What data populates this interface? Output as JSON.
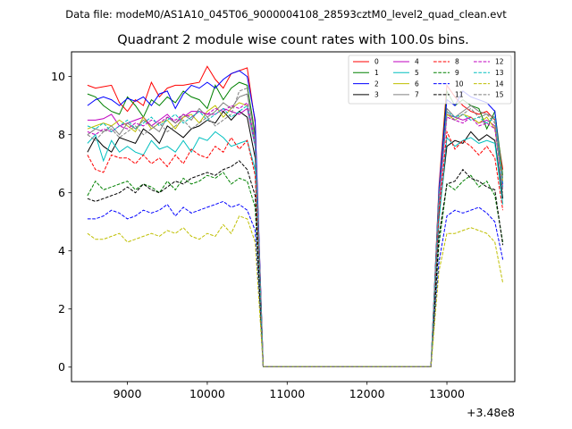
{
  "suptitle": "Data file: modeM0/AS1A10_045T06_9000004108_28593cztM0_level2_quad_clean.evt",
  "chart_data": {
    "type": "line",
    "title": "Quadrant 2 module wise count rates with 100.0s bins.",
    "xlabel": "",
    "ylabel": "",
    "x_offset_label": "+3.48e8",
    "x_offset": 348000000,
    "xlim": [
      8300,
      13850
    ],
    "ylim": [
      -0.5,
      10.85
    ],
    "x_ticks": [
      9000,
      10000,
      11000,
      12000,
      13000
    ],
    "x_tick_labels": [
      "9000",
      "10000",
      "11000",
      "12000",
      "13000"
    ],
    "y_ticks": [
      0,
      2,
      4,
      6,
      8,
      10
    ],
    "y_tick_labels": [
      "0",
      "2",
      "4",
      "6",
      "8",
      "10"
    ],
    "grid": false,
    "legend_position": "top-right",
    "x": [
      8500,
      8600,
      8700,
      8800,
      8900,
      9000,
      9100,
      9200,
      9300,
      9400,
      9500,
      9600,
      9700,
      9800,
      9900,
      10000,
      10100,
      10200,
      10300,
      10400,
      10500,
      10600,
      10700,
      10800,
      10900,
      11000,
      11100,
      11200,
      11300,
      11400,
      11500,
      11600,
      11700,
      11800,
      11900,
      12000,
      12100,
      12200,
      12300,
      12400,
      12500,
      12600,
      12700,
      12800,
      12900,
      13000,
      13100,
      13200,
      13300,
      13400,
      13500,
      13600,
      13700
    ],
    "series": [
      {
        "name": "0",
        "color": "#ff0000",
        "dash": "solid",
        "values": [
          9.7,
          9.6,
          9.65,
          9.7,
          9.1,
          8.8,
          9.2,
          9.0,
          9.8,
          9.3,
          9.6,
          9.7,
          9.7,
          9.75,
          9.8,
          10.35,
          9.9,
          9.6,
          10.1,
          10.2,
          10.3,
          8.4,
          0.02,
          0.02,
          0.02,
          0.02,
          0.02,
          0.02,
          0.02,
          0.02,
          0.02,
          0.02,
          0.02,
          0.02,
          0.02,
          0.02,
          0.02,
          0.02,
          0.02,
          0.02,
          0.02,
          0.02,
          0.02,
          0.02,
          6.2,
          9.7,
          9.3,
          9.0,
          8.8,
          8.7,
          8.8,
          8.5,
          6.8
        ]
      },
      {
        "name": "1",
        "color": "#008000",
        "dash": "solid",
        "values": [
          9.4,
          9.3,
          9.0,
          8.8,
          8.7,
          9.3,
          9.0,
          8.6,
          9.2,
          9.0,
          9.3,
          9.1,
          9.5,
          9.3,
          9.2,
          8.9,
          9.7,
          9.2,
          9.6,
          9.8,
          9.7,
          8.0,
          0.02,
          0.02,
          0.02,
          0.02,
          0.02,
          0.02,
          0.02,
          0.02,
          0.02,
          0.02,
          0.02,
          0.02,
          0.02,
          0.02,
          0.02,
          0.02,
          0.02,
          0.02,
          0.02,
          0.02,
          0.02,
          0.02,
          6.0,
          9.5,
          9.0,
          9.2,
          9.0,
          8.9,
          8.2,
          8.8,
          6.6
        ]
      },
      {
        "name": "2",
        "color": "#0000ff",
        "dash": "solid",
        "values": [
          9.0,
          9.2,
          9.3,
          9.2,
          9.0,
          9.25,
          9.15,
          9.3,
          9.0,
          9.4,
          9.5,
          8.9,
          9.4,
          9.7,
          9.6,
          9.8,
          9.6,
          9.9,
          10.1,
          10.2,
          10.0,
          8.5,
          0.02,
          0.02,
          0.02,
          0.02,
          0.02,
          0.02,
          0.02,
          0.02,
          0.02,
          0.02,
          0.02,
          0.02,
          0.02,
          0.02,
          0.02,
          0.02,
          0.02,
          0.02,
          0.02,
          0.02,
          0.02,
          0.02,
          6.1,
          9.2,
          9.0,
          9.5,
          9.3,
          9.2,
          9.1,
          8.8,
          6.3
        ]
      },
      {
        "name": "3",
        "color": "#000000",
        "dash": "solid",
        "values": [
          7.4,
          7.9,
          7.6,
          7.4,
          7.9,
          7.8,
          7.7,
          8.2,
          8.0,
          7.7,
          8.3,
          8.1,
          7.9,
          8.2,
          8.3,
          8.5,
          8.4,
          8.8,
          8.5,
          8.8,
          8.6,
          7.2,
          0.02,
          0.02,
          0.02,
          0.02,
          0.02,
          0.02,
          0.02,
          0.02,
          0.02,
          0.02,
          0.02,
          0.02,
          0.02,
          0.02,
          0.02,
          0.02,
          0.02,
          0.02,
          0.02,
          0.02,
          0.02,
          0.02,
          5.2,
          7.6,
          7.8,
          7.7,
          8.1,
          7.8,
          8.0,
          7.8,
          5.8
        ]
      },
      {
        "name": "4",
        "color": "#bf00bf",
        "dash": "solid",
        "values": [
          8.5,
          8.5,
          8.55,
          8.7,
          8.3,
          8.4,
          8.5,
          8.6,
          8.3,
          8.5,
          8.7,
          8.4,
          8.6,
          8.8,
          8.8,
          8.7,
          8.7,
          8.9,
          8.8,
          8.7,
          8.9,
          7.6,
          0.02,
          0.02,
          0.02,
          0.02,
          0.02,
          0.02,
          0.02,
          0.02,
          0.02,
          0.02,
          0.02,
          0.02,
          0.02,
          0.02,
          0.02,
          0.02,
          0.02,
          0.02,
          0.02,
          0.02,
          0.02,
          0.02,
          5.6,
          8.7,
          8.6,
          8.5,
          8.6,
          8.4,
          8.5,
          8.3,
          6.2
        ]
      },
      {
        "name": "5",
        "color": "#00bfbf",
        "dash": "solid",
        "values": [
          7.7,
          8.0,
          7.1,
          7.8,
          7.4,
          7.6,
          7.4,
          7.3,
          7.8,
          7.5,
          7.6,
          7.4,
          7.8,
          7.4,
          7.9,
          7.8,
          8.1,
          7.9,
          7.6,
          7.7,
          7.8,
          6.8,
          0.02,
          0.02,
          0.02,
          0.02,
          0.02,
          0.02,
          0.02,
          0.02,
          0.02,
          0.02,
          0.02,
          0.02,
          0.02,
          0.02,
          0.02,
          0.02,
          0.02,
          0.02,
          0.02,
          0.02,
          0.02,
          0.02,
          5.0,
          7.9,
          7.6,
          7.8,
          7.9,
          7.7,
          7.8,
          7.7,
          5.6
        ]
      },
      {
        "name": "6",
        "color": "#bfbf00",
        "dash": "solid",
        "values": [
          8.2,
          8.3,
          8.4,
          8.3,
          8.5,
          8.3,
          8.1,
          8.6,
          8.2,
          8.4,
          8.5,
          8.2,
          8.6,
          8.7,
          8.4,
          8.8,
          9.0,
          8.6,
          8.9,
          9.1,
          9.0,
          7.8,
          0.02,
          0.02,
          0.02,
          0.02,
          0.02,
          0.02,
          0.02,
          0.02,
          0.02,
          0.02,
          0.02,
          0.02,
          0.02,
          0.02,
          0.02,
          0.02,
          0.02,
          0.02,
          0.02,
          0.02,
          0.02,
          0.02,
          5.8,
          8.7,
          8.5,
          8.7,
          8.6,
          8.4,
          8.6,
          8.2,
          6.4
        ]
      },
      {
        "name": "7",
        "color": "#808080",
        "dash": "solid",
        "values": [
          8.0,
          8.2,
          8.1,
          8.3,
          8.0,
          8.4,
          8.2,
          8.5,
          8.3,
          8.1,
          8.6,
          8.4,
          8.7,
          8.5,
          8.9,
          8.6,
          8.8,
          9.1,
          8.9,
          9.3,
          9.4,
          7.9,
          0.02,
          0.02,
          0.02,
          0.02,
          0.02,
          0.02,
          0.02,
          0.02,
          0.02,
          0.02,
          0.02,
          0.02,
          0.02,
          0.02,
          0.02,
          0.02,
          0.02,
          0.02,
          0.02,
          0.02,
          0.02,
          0.02,
          5.7,
          8.9,
          8.6,
          8.8,
          9.0,
          8.8,
          8.7,
          8.6,
          6.5
        ]
      },
      {
        "name": "8",
        "color": "#ff0000",
        "dash": "dashed",
        "values": [
          7.3,
          6.8,
          6.7,
          7.3,
          7.2,
          7.2,
          7.0,
          7.3,
          7.0,
          7.2,
          6.9,
          7.3,
          7.0,
          7.5,
          7.3,
          7.2,
          7.6,
          7.4,
          7.9,
          7.5,
          7.8,
          6.6,
          0.02,
          0.02,
          0.02,
          0.02,
          0.02,
          0.02,
          0.02,
          0.02,
          0.02,
          0.02,
          0.02,
          0.02,
          0.02,
          0.02,
          0.02,
          0.02,
          0.02,
          0.02,
          0.02,
          0.02,
          0.02,
          0.02,
          5.3,
          8.1,
          7.5,
          7.8,
          7.6,
          7.3,
          7.6,
          7.2,
          5.4
        ]
      },
      {
        "name": "9",
        "color": "#008000",
        "dash": "dashed",
        "values": [
          5.9,
          6.4,
          6.1,
          6.2,
          6.3,
          6.4,
          6.1,
          6.3,
          6.2,
          6.0,
          6.4,
          6.1,
          6.5,
          6.3,
          6.4,
          6.6,
          6.5,
          6.7,
          6.3,
          6.5,
          6.4,
          5.5,
          0.02,
          0.02,
          0.02,
          0.02,
          0.02,
          0.02,
          0.02,
          0.02,
          0.02,
          0.02,
          0.02,
          0.02,
          0.02,
          0.02,
          0.02,
          0.02,
          0.02,
          0.02,
          0.02,
          0.02,
          0.02,
          0.02,
          4.2,
          6.3,
          6.1,
          6.4,
          6.6,
          6.2,
          6.4,
          5.9,
          4.3
        ]
      },
      {
        "name": "10",
        "color": "#0000ff",
        "dash": "dashed",
        "values": [
          5.1,
          5.1,
          5.2,
          5.4,
          5.3,
          5.1,
          5.2,
          5.4,
          5.3,
          5.4,
          5.6,
          5.2,
          5.5,
          5.3,
          5.4,
          5.5,
          5.6,
          5.7,
          5.5,
          5.6,
          5.4,
          4.7,
          0.02,
          0.02,
          0.02,
          0.02,
          0.02,
          0.02,
          0.02,
          0.02,
          0.02,
          0.02,
          0.02,
          0.02,
          0.02,
          0.02,
          0.02,
          0.02,
          0.02,
          0.02,
          0.02,
          0.02,
          0.02,
          0.02,
          3.6,
          5.2,
          5.4,
          5.3,
          5.4,
          5.5,
          5.3,
          5.0,
          3.7
        ]
      },
      {
        "name": "11",
        "color": "#000000",
        "dash": "dashed",
        "values": [
          5.8,
          5.7,
          5.8,
          5.9,
          6.0,
          6.2,
          6.0,
          6.3,
          6.1,
          6.0,
          6.2,
          6.4,
          6.3,
          6.5,
          6.6,
          6.7,
          6.6,
          6.8,
          6.9,
          7.1,
          6.8,
          5.9,
          0.02,
          0.02,
          0.02,
          0.02,
          0.02,
          0.02,
          0.02,
          0.02,
          0.02,
          0.02,
          0.02,
          0.02,
          0.02,
          0.02,
          0.02,
          0.02,
          0.02,
          0.02,
          0.02,
          0.02,
          0.02,
          0.02,
          4.5,
          6.3,
          6.4,
          6.8,
          6.5,
          6.4,
          6.2,
          6.1,
          4.2
        ]
      },
      {
        "name": "12",
        "color": "#bf00bf",
        "dash": "dashed",
        "values": [
          8.1,
          8.0,
          8.2,
          8.1,
          8.3,
          8.2,
          8.4,
          8.3,
          8.5,
          8.4,
          8.6,
          8.5,
          8.7,
          8.6,
          8.8,
          8.7,
          8.9,
          8.8,
          9.0,
          8.9,
          9.1,
          7.7,
          0.02,
          0.02,
          0.02,
          0.02,
          0.02,
          0.02,
          0.02,
          0.02,
          0.02,
          0.02,
          0.02,
          0.02,
          0.02,
          0.02,
          0.02,
          0.02,
          0.02,
          0.02,
          0.02,
          0.02,
          0.02,
          0.02,
          5.8,
          8.6,
          8.5,
          8.4,
          8.6,
          8.3,
          8.4,
          8.2,
          6.1
        ]
      },
      {
        "name": "13",
        "color": "#00bfbf",
        "dash": "dashed",
        "values": [
          8.3,
          8.2,
          8.4,
          8.1,
          8.3,
          8.5,
          8.2,
          8.4,
          8.6,
          8.3,
          8.5,
          8.7,
          8.4,
          8.6,
          8.8,
          8.5,
          8.7,
          8.9,
          8.6,
          8.8,
          9.0,
          7.6,
          0.02,
          0.02,
          0.02,
          0.02,
          0.02,
          0.02,
          0.02,
          0.02,
          0.02,
          0.02,
          0.02,
          0.02,
          0.02,
          0.02,
          0.02,
          0.02,
          0.02,
          0.02,
          0.02,
          0.02,
          0.02,
          0.02,
          5.9,
          8.8,
          8.6,
          8.7,
          8.5,
          8.6,
          8.4,
          8.6,
          6.2
        ]
      },
      {
        "name": "14",
        "color": "#bfbf00",
        "dash": "dashed",
        "values": [
          4.6,
          4.4,
          4.4,
          4.5,
          4.6,
          4.3,
          4.4,
          4.5,
          4.6,
          4.5,
          4.7,
          4.6,
          4.8,
          4.5,
          4.4,
          4.6,
          4.5,
          4.9,
          4.6,
          5.2,
          5.1,
          4.3,
          0.02,
          0.02,
          0.02,
          0.02,
          0.02,
          0.02,
          0.02,
          0.02,
          0.02,
          0.02,
          0.02,
          0.02,
          0.02,
          0.02,
          0.02,
          0.02,
          0.02,
          0.02,
          0.02,
          0.02,
          0.02,
          0.02,
          3.3,
          4.6,
          4.6,
          4.7,
          4.8,
          4.7,
          4.6,
          4.3,
          2.9
        ]
      },
      {
        "name": "15",
        "color": "#808080",
        "dash": "dashed",
        "values": [
          8.0,
          7.8,
          8.1,
          8.2,
          7.9,
          8.1,
          8.3,
          8.0,
          8.2,
          8.4,
          8.1,
          8.3,
          8.5,
          8.2,
          8.4,
          8.6,
          8.3,
          8.5,
          8.7,
          9.5,
          9.6,
          7.8,
          0.02,
          0.02,
          0.02,
          0.02,
          0.02,
          0.02,
          0.02,
          0.02,
          0.02,
          0.02,
          0.02,
          0.02,
          0.02,
          0.02,
          0.02,
          0.02,
          0.02,
          0.02,
          0.02,
          0.02,
          0.02,
          0.02,
          5.9,
          8.8,
          8.5,
          8.7,
          8.9,
          8.6,
          8.7,
          8.4,
          6.0
        ]
      }
    ]
  }
}
